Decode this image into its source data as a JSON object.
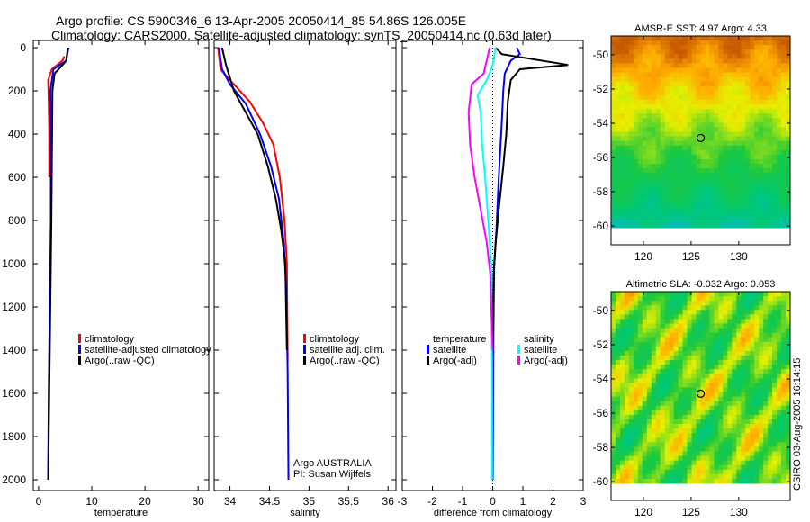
{
  "title": {
    "line1": "Argo profile: CS 5900346_6 13-Apr-2005 20050414_85 54.86S 126.005E",
    "line2": "Climatology: CARS2000. Satellite-adjusted climatology: synTS_20050414.nc (0.63d later)"
  },
  "side_label": "CSIRO 03-Aug-2005 16:14:15",
  "chart_data": [
    {
      "type": "line",
      "id": "temperature",
      "xlabel": "temperature",
      "ylabel": "",
      "xlim": [
        -1,
        32
      ],
      "ylim": [
        2050,
        0
      ],
      "xticks": [
        0,
        10,
        20,
        30
      ],
      "yticks": [
        0,
        200,
        400,
        600,
        800,
        1000,
        1200,
        1400,
        1600,
        1800,
        2000
      ],
      "legend": [
        "climatology",
        "satellite-adjusted climatology",
        "Argo(..raw -QC)"
      ],
      "series": [
        {
          "name": "climatology",
          "color": "#ff0000",
          "points": [
            [
              4.8,
              40
            ],
            [
              4.5,
              60
            ],
            [
              2.5,
              100
            ],
            [
              1.8,
              150
            ],
            [
              1.9,
              250
            ],
            [
              2.0,
              400
            ],
            [
              2.0,
              600
            ]
          ]
        },
        {
          "name": "satellite-adjusted climatology",
          "color": "#0000ff",
          "points": [
            [
              5.6,
              0
            ],
            [
              5.2,
              60
            ],
            [
              2.8,
              100
            ],
            [
              2.2,
              200
            ],
            [
              2.3,
              400
            ],
            [
              2.3,
              800
            ],
            [
              2.1,
              1200
            ],
            [
              1.9,
              1600
            ],
            [
              1.8,
              2000
            ]
          ]
        },
        {
          "name": "Argo(..raw -QC)",
          "color": "#000000",
          "points": [
            [
              5.5,
              0
            ],
            [
              5.2,
              60
            ],
            [
              4.5,
              80
            ],
            [
              3.0,
              120
            ],
            [
              2.6,
              200
            ],
            [
              2.5,
              500
            ],
            [
              2.4,
              800
            ],
            [
              2.3,
              1000
            ],
            [
              2.1,
              1400
            ],
            [
              1.9,
              1800
            ],
            [
              1.8,
              2000
            ]
          ]
        }
      ]
    },
    {
      "type": "line",
      "id": "salinity",
      "xlabel": "salinity",
      "xlim": [
        33.8,
        36.1
      ],
      "ylim": [
        2050,
        0
      ],
      "xticks": [
        34,
        34.5,
        35,
        35.5,
        36
      ],
      "legend": [
        "climatology",
        "satellite adj. clim.",
        "Argo(..raw -QC)"
      ],
      "annotation": [
        "Argo AUSTRALIA",
        "PI: Susan Wijffels"
      ],
      "series": [
        {
          "name": "climatology",
          "color": "#ff0000",
          "points": [
            [
              33.85,
              0
            ],
            [
              33.88,
              100
            ],
            [
              34.0,
              150
            ],
            [
              34.25,
              250
            ],
            [
              34.42,
              350
            ],
            [
              34.55,
              450
            ],
            [
              34.63,
              600
            ],
            [
              34.69,
              800
            ],
            [
              34.72,
              1000
            ],
            [
              34.73,
              1450
            ]
          ]
        },
        {
          "name": "satellite adj. clim.",
          "color": "#0000ff",
          "points": [
            [
              33.86,
              0
            ],
            [
              33.9,
              100
            ],
            [
              34.0,
              170
            ],
            [
              34.2,
              260
            ],
            [
              34.38,
              400
            ],
            [
              34.52,
              550
            ],
            [
              34.62,
              700
            ],
            [
              34.68,
              900
            ],
            [
              34.71,
              1100
            ],
            [
              34.73,
              1500
            ],
            [
              34.74,
              2000
            ]
          ]
        },
        {
          "name": "Argo(..raw -QC)",
          "color": "#000000",
          "points": [
            [
              33.9,
              0
            ],
            [
              33.95,
              80
            ],
            [
              34.05,
              200
            ],
            [
              34.2,
              300
            ],
            [
              34.35,
              400
            ],
            [
              34.48,
              550
            ],
            [
              34.58,
              700
            ],
            [
              34.65,
              850
            ],
            [
              34.7,
              1000
            ],
            [
              34.72,
              1400
            ]
          ]
        }
      ]
    },
    {
      "type": "line",
      "id": "difference",
      "xlabel": "difference from climatology",
      "xlim": [
        -3,
        3
      ],
      "ylim": [
        2050,
        0
      ],
      "xticks": [
        -3,
        -2,
        -1,
        0,
        1,
        2,
        3
      ],
      "legend_left": {
        "title": "temperature",
        "items": [
          "satellite",
          "Argo(-adj)"
        ]
      },
      "legend_right": {
        "title": "salinity",
        "items": [
          "satellite",
          "Argo(-adj)"
        ]
      },
      "series": [
        {
          "name": "temperature satellite",
          "color": "#0000ff",
          "points": [
            [
              0.8,
              0
            ],
            [
              0.9,
              30
            ],
            [
              0.6,
              60
            ],
            [
              0.4,
              120
            ],
            [
              0.35,
              200
            ],
            [
              0.3,
              350
            ],
            [
              0.2,
              600
            ],
            [
              0.12,
              850
            ],
            [
              0.05,
              1000
            ],
            [
              0.02,
              1400
            ],
            [
              0.0,
              2000
            ]
          ]
        },
        {
          "name": "temperature Argo(-adj)",
          "color": "#000000",
          "points": [
            [
              0.1,
              0
            ],
            [
              0.3,
              30
            ],
            [
              2.5,
              80
            ],
            [
              0.9,
              100
            ],
            [
              0.6,
              150
            ],
            [
              0.5,
              250
            ],
            [
              0.45,
              400
            ],
            [
              0.35,
              550
            ],
            [
              0.2,
              750
            ],
            [
              0.1,
              900
            ],
            [
              0.03,
              1050
            ],
            [
              0.0,
              1400
            ]
          ]
        },
        {
          "name": "salinity satellite",
          "color": "#00ffff",
          "points": [
            [
              0.1,
              0
            ],
            [
              0.0,
              80
            ],
            [
              -0.2,
              150
            ],
            [
              -0.5,
              220
            ],
            [
              -0.4,
              300
            ],
            [
              -0.35,
              450
            ],
            [
              -0.25,
              600
            ],
            [
              -0.15,
              800
            ],
            [
              -0.05,
              1000
            ],
            [
              -0.02,
              1500
            ],
            [
              -0.02,
              2000
            ]
          ]
        },
        {
          "name": "salinity Argo(-adj)",
          "color": "#ff00ff",
          "points": [
            [
              -0.1,
              0
            ],
            [
              -0.3,
              120
            ],
            [
              -0.7,
              170
            ],
            [
              -0.8,
              300
            ],
            [
              -0.75,
              450
            ],
            [
              -0.6,
              600
            ],
            [
              -0.4,
              750
            ],
            [
              -0.2,
              900
            ],
            [
              -0.08,
              1050
            ],
            [
              0.0,
              1400
            ]
          ]
        }
      ]
    },
    {
      "type": "heatmap",
      "id": "sst-map",
      "title": "AMSR-E SST: 4.97 Argo: 4.33",
      "xlim": [
        116.6,
        135.4
      ],
      "ylim": [
        -61.1,
        -48.9
      ],
      "xticks": [
        120,
        125,
        130
      ],
      "yticks": [
        -50,
        -52,
        -54,
        -56,
        -58,
        -60
      ],
      "argo_position": [
        126.005,
        -54.86
      ]
    },
    {
      "type": "heatmap",
      "id": "sla-map",
      "title": "Altimetric SLA: -0.032 Argo: 0.053",
      "xlim": [
        116.6,
        135.4
      ],
      "ylim": [
        -61.1,
        -48.9
      ],
      "xticks": [
        120,
        125,
        130
      ],
      "yticks": [
        -50,
        -52,
        -54,
        -56,
        -58,
        -60
      ],
      "argo_position": [
        126.005,
        -54.86
      ]
    }
  ]
}
